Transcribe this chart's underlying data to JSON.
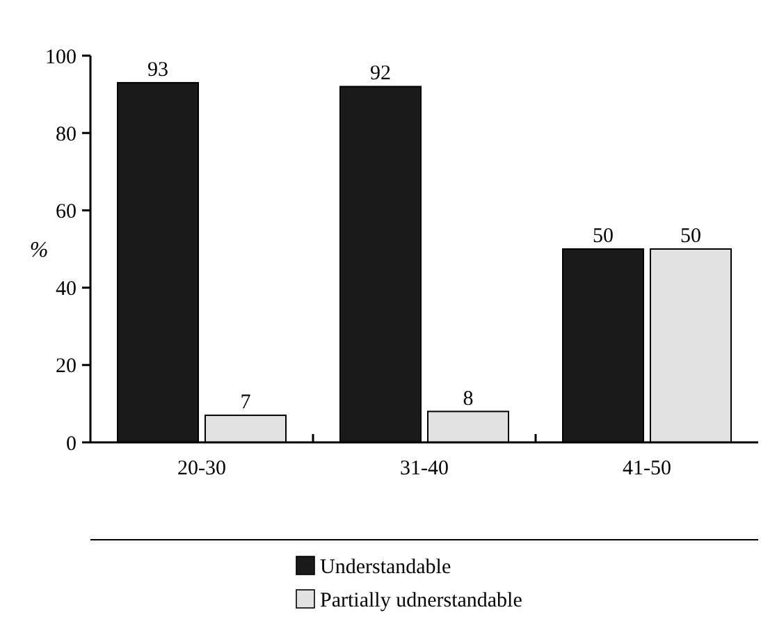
{
  "chart_data": {
    "type": "bar",
    "ylabel": "%",
    "categories": [
      "20-30",
      "31-40",
      "41-50"
    ],
    "series": [
      {
        "name": "Understandable",
        "color": "#1a1a1a",
        "values": [
          93,
          92,
          50
        ]
      },
      {
        "name": "Partially udnerstandable",
        "color": "#e2e2e2",
        "values": [
          7,
          8,
          50
        ]
      }
    ],
    "ylim": [
      0,
      100
    ],
    "yticks": [
      0,
      20,
      40,
      60,
      80,
      100
    ],
    "data_labels": true,
    "legend": "bottom",
    "grid": false
  }
}
